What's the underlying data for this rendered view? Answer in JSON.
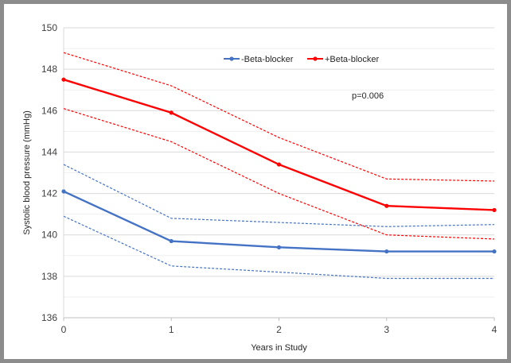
{
  "chart_data": {
    "type": "line",
    "title": "",
    "xlabel": "Years in Study",
    "ylabel": "Systolic blood pressure (mmHg)",
    "x": [
      0,
      1,
      2,
      3,
      4
    ],
    "xlim": [
      0,
      4
    ],
    "ylim": [
      136,
      150
    ],
    "y_ticks": [
      136,
      138,
      140,
      142,
      144,
      146,
      148,
      150
    ],
    "x_ticks": [
      0,
      1,
      2,
      3,
      4
    ],
    "grid": "horizontal major and minor",
    "legend_position": "top-center",
    "annotation": "p=0.006",
    "series": [
      {
        "name": "-Beta-blocker",
        "color": "#4472c4",
        "style": "solid",
        "markers": true,
        "values": [
          142.1,
          139.7,
          139.4,
          139.2,
          139.2
        ]
      },
      {
        "name": "+Beta-blocker",
        "color": "#ff0000",
        "style": "solid",
        "markers": true,
        "values": [
          147.5,
          145.9,
          143.4,
          141.4,
          141.2
        ]
      },
      {
        "color": "#4472c4",
        "style": "dashed",
        "markers": false,
        "values": [
          143.4,
          140.8,
          140.6,
          140.4,
          140.5
        ]
      },
      {
        "color": "#4472c4",
        "style": "dashed",
        "markers": false,
        "values": [
          140.9,
          138.5,
          138.2,
          137.9,
          137.9
        ]
      },
      {
        "color": "#ff0000",
        "style": "dashed",
        "markers": false,
        "values": [
          148.8,
          147.2,
          144.7,
          142.7,
          142.6
        ]
      },
      {
        "color": "#ff0000",
        "style": "dashed",
        "markers": false,
        "values": [
          146.1,
          144.5,
          142.0,
          140.0,
          139.8
        ]
      }
    ]
  }
}
